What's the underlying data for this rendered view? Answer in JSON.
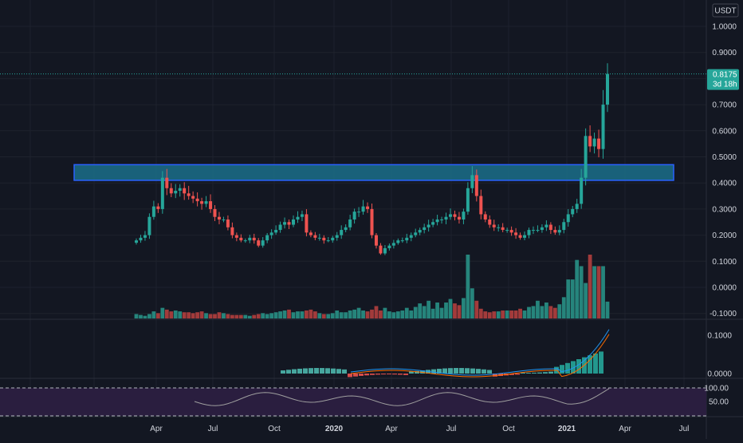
{
  "currency": "USDT",
  "price_tag": {
    "price": "0.8175",
    "countdown": "3d 18h"
  },
  "colors": {
    "up": "#26a69a",
    "down": "#ef5350",
    "vol_up": "#26857c",
    "vol_down": "#a23b3b",
    "zone_fill": "#1b6f8a",
    "zone_border": "#2962ff",
    "rsi_line": "#9e9e9e",
    "rsi_band": "#2a1e3f",
    "macd": "#2196f3",
    "signal": "#ff6d00"
  },
  "chart_data": [
    {
      "type": "candlestick",
      "title": "",
      "x_labels": [
        "Apr",
        "Jul",
        "Oct",
        "2020",
        "Apr",
        "Jul",
        "Oct",
        "2021",
        "Apr",
        "Jul"
      ],
      "y_ticks": [
        "1.0000",
        "0.9000",
        "0.8000",
        "0.7000",
        "0.6000",
        "0.5000",
        "0.4000",
        "0.3000",
        "0.2000",
        "0.1000",
        "0.0000",
        "-0.1000"
      ],
      "ylim": [
        -0.1,
        1.05
      ],
      "grid": true,
      "resistance_zone": [
        0.41,
        0.47
      ],
      "last_price": 0.8175,
      "candles_weekly_close": [
        0.18,
        0.19,
        0.2,
        0.27,
        0.31,
        0.3,
        0.42,
        0.38,
        0.36,
        0.37,
        0.38,
        0.36,
        0.35,
        0.34,
        0.33,
        0.32,
        0.33,
        0.3,
        0.27,
        0.26,
        0.26,
        0.23,
        0.2,
        0.19,
        0.18,
        0.18,
        0.19,
        0.18,
        0.16,
        0.18,
        0.2,
        0.21,
        0.22,
        0.24,
        0.25,
        0.24,
        0.26,
        0.27,
        0.28,
        0.21,
        0.2,
        0.19,
        0.19,
        0.18,
        0.18,
        0.19,
        0.2,
        0.22,
        0.23,
        0.26,
        0.29,
        0.29,
        0.31,
        0.3,
        0.2,
        0.16,
        0.13,
        0.15,
        0.16,
        0.17,
        0.18,
        0.18,
        0.19,
        0.2,
        0.21,
        0.22,
        0.23,
        0.24,
        0.25,
        0.26,
        0.26,
        0.27,
        0.28,
        0.27,
        0.26,
        0.29,
        0.38,
        0.43,
        0.35,
        0.28,
        0.26,
        0.24,
        0.23,
        0.23,
        0.22,
        0.22,
        0.21,
        0.2,
        0.19,
        0.2,
        0.22,
        0.22,
        0.22,
        0.23,
        0.24,
        0.22,
        0.21,
        0.22,
        0.25,
        0.28,
        0.3,
        0.32,
        0.42,
        0.58,
        0.54,
        0.57,
        0.53,
        0.7,
        0.8175
      ]
    },
    {
      "type": "bar",
      "title": "",
      "series_name": "",
      "values_relative": [
        5,
        4,
        3,
        5,
        8,
        6,
        12,
        10,
        8,
        9,
        8,
        7,
        7,
        6,
        7,
        8,
        6,
        5,
        5,
        7,
        6,
        5,
        4,
        4,
        4,
        4,
        3,
        4,
        5,
        6,
        5,
        6,
        7,
        8,
        9,
        10,
        7,
        8,
        8,
        9,
        10,
        8,
        6,
        5,
        5,
        6,
        9,
        7,
        7,
        9,
        10,
        12,
        9,
        8,
        10,
        14,
        9,
        12,
        8,
        7,
        8,
        9,
        12,
        9,
        13,
        17,
        14,
        20,
        11,
        18,
        12,
        18,
        22,
        17,
        15,
        23,
        72,
        34,
        20,
        11,
        8,
        7,
        8,
        8,
        9,
        9,
        9,
        9,
        11,
        9,
        13,
        14,
        20,
        14,
        18,
        14,
        12,
        16,
        24,
        44,
        44,
        66,
        59,
        40,
        72,
        59,
        59,
        59,
        19
      ]
    },
    {
      "type": "line",
      "title": "",
      "y_ticks": [
        "0.1000",
        "0.0000"
      ],
      "series": [
        {
          "name": ""
        },
        {
          "name": ""
        }
      ]
    },
    {
      "type": "line",
      "title": "",
      "y_ticks": [
        "100.00",
        "50.00"
      ],
      "ylim": [
        0,
        100
      ]
    }
  ]
}
